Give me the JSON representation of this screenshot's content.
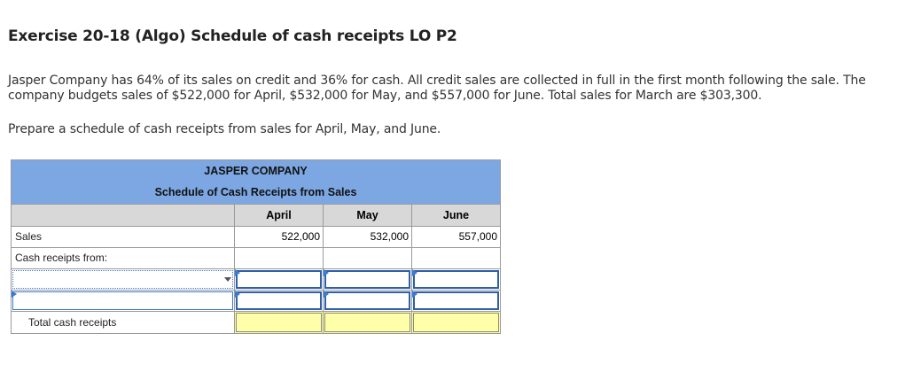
{
  "exercise": {
    "title": "Exercise 20-18 (Algo) Schedule of cash receipts LO P2",
    "intro": "Jasper Company has 64% of its sales on credit and 36% for cash. All credit sales are collected in full in the first month following the sale. The company budgets sales of $522,000 for April, $532,000 for May, and $557,000 for June. Total sales for March are $303,300.",
    "instruction": "Prepare a schedule of cash receipts from sales for April, May, and June."
  },
  "schedule": {
    "company": "JASPER COMPANY",
    "subtitle": "Schedule of Cash Receipts from Sales",
    "columns": [
      "April",
      "May",
      "June"
    ],
    "sales_label": "Sales",
    "sales_values": [
      "522,000",
      "532,000",
      "557,000"
    ],
    "cash_receipts_label": "Cash receipts from:",
    "total_label": "Total cash receipts"
  },
  "colors": {
    "header_blue": "#7da7e2",
    "column_header_gray": "#d8d8d8",
    "total_yellow": "#ffff99",
    "input_border_blue": "#3a7bd5"
  }
}
